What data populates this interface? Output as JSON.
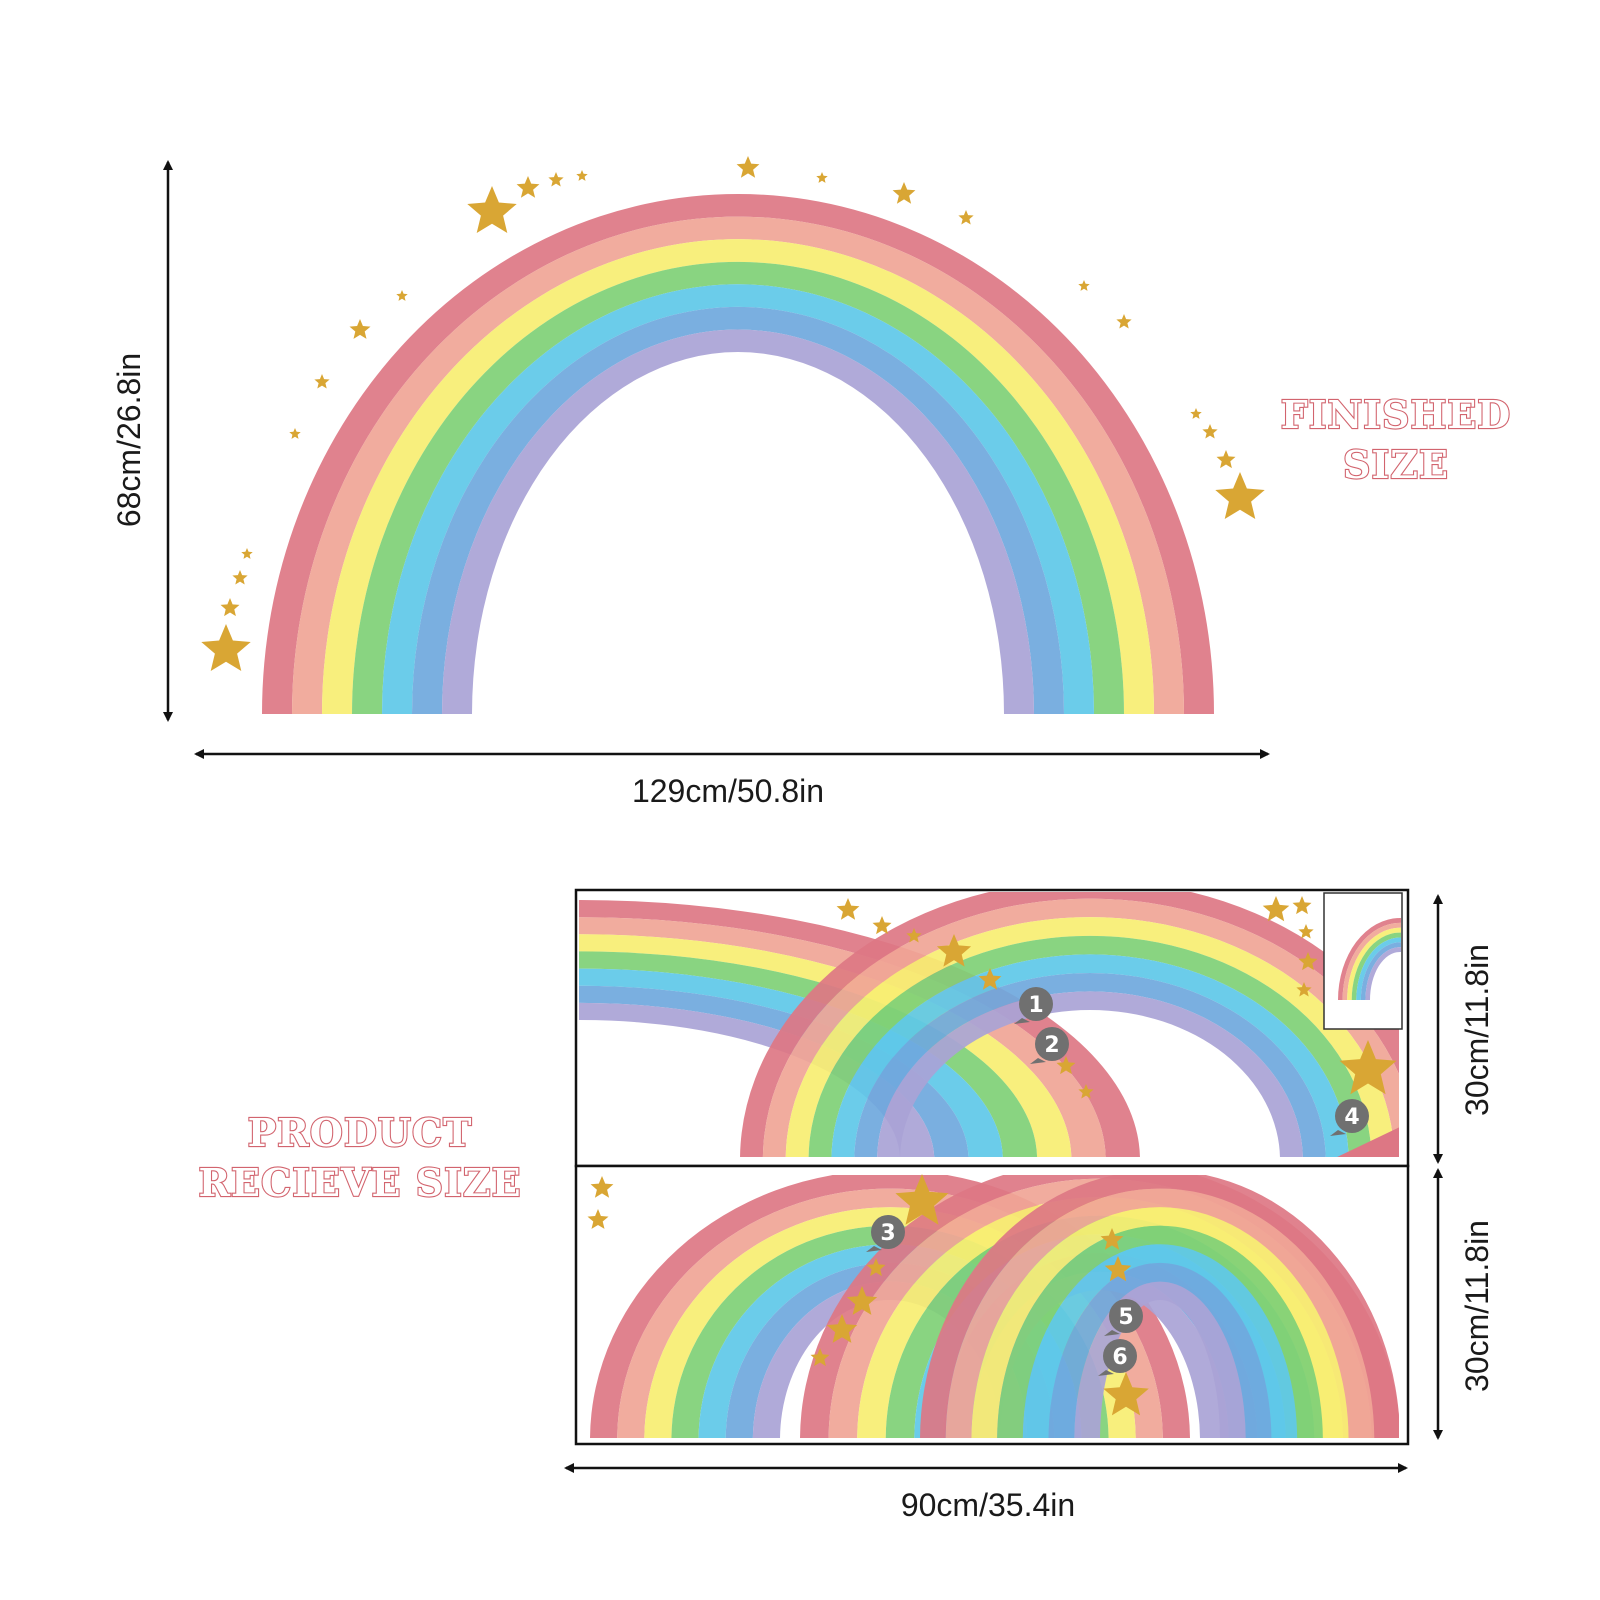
{
  "finished": {
    "label_line1": "FINISHED",
    "label_line2": "SIZE",
    "height_text": "68cm/26.8in",
    "width_text": "129cm/50.8in"
  },
  "product": {
    "label_line1": "PRODUCT",
    "label_line2": "RECIEVE SIZE",
    "sheet1_height_text": "30cm/11.8in",
    "sheet2_height_text": "30cm/11.8in",
    "width_text": "90cm/35.4in",
    "piece_numbers": [
      "1",
      "2",
      "3",
      "4",
      "5",
      "6"
    ]
  },
  "colors": {
    "band_colors": [
      "#dd7784",
      "#f0a596",
      "#f7ee72",
      "#7fd076",
      "#5ec8e8",
      "#6fa8dd",
      "#a9a3d6"
    ],
    "star": "#d9a634",
    "label": "#d2646e",
    "tag": "#707070"
  },
  "icons": [
    "star-icon",
    "arrow-icon",
    "number-tag-icon"
  ]
}
